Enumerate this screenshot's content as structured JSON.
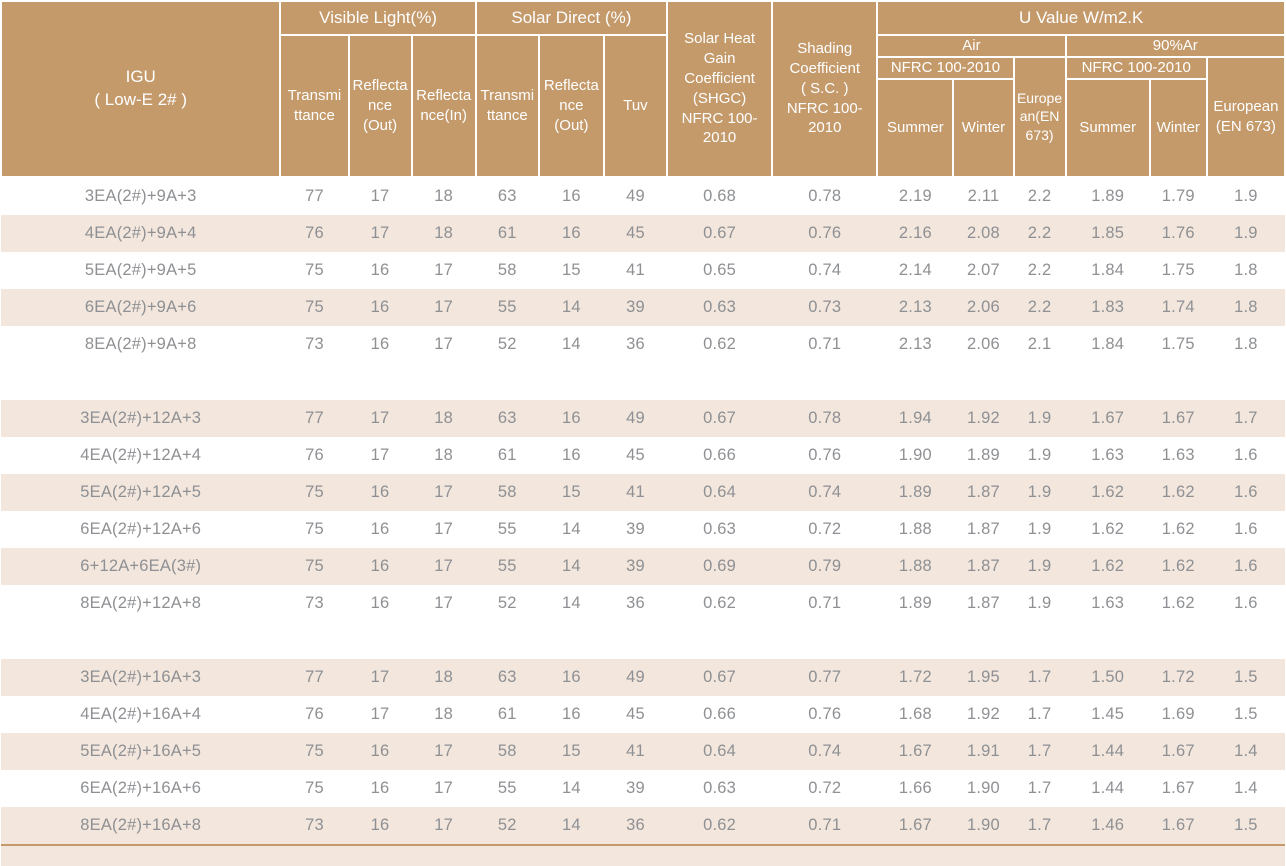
{
  "colors": {
    "header_bg": "#c49a6b",
    "row_shaded_bg": "#f2e6dd",
    "row_plain_bg": "#ffffff",
    "header_text": "#ffffff",
    "body_text": "#8e9093",
    "bottom_rule": "#c49a6b"
  },
  "table": {
    "corner_title": "IGU\n( Low-E 2# )",
    "group_headers": {
      "visible_light": "Visible Light(%)",
      "solar_direct": "Solar  Direct (%)",
      "shgc": "Solar Heat\nGain\nCoefficient\n(SHGC)\nNFRC 100-\n2010",
      "shading": "Shading\nCoefficient\n( S.C. )\nNFRC 100-\n2010",
      "u_value": "U Value W/m2.K"
    },
    "sub_headers": {
      "vl_transmittance": "Transmi\nttance",
      "vl_reflectance_out": "Reflecta\nnce\n(Out)",
      "vl_reflectance_in": "Reflecta\nnce(In)",
      "sd_transmittance": "Transmi\nttance",
      "sd_reflectance_out": "Reflecta\nnce\n(Out)",
      "sd_tuv": "Tuv",
      "air": "Air",
      "argon": "90%Ar",
      "air_nfrc": "NFRC 100-2010",
      "air_summer": "Summer",
      "air_winter": "Winter",
      "air_european": "Europe\nan(EN\n673)",
      "argon_nfrc": "NFRC 100-2010",
      "argon_summer": "Summer",
      "argon_winter": "Winter",
      "argon_european": "European\n(EN 673)"
    },
    "groups": [
      {
        "rows": [
          {
            "label": "3EA(2#)+9A+3",
            "values": [
              "77",
              "17",
              "18",
              "63",
              "16",
              "49",
              "0.68",
              "0.78",
              "2.19",
              "2.11",
              "2.2",
              "1.89",
              "1.79",
              "1.9"
            ]
          },
          {
            "label": "4EA(2#)+9A+4",
            "values": [
              "76",
              "17",
              "18",
              "61",
              "16",
              "45",
              "0.67",
              "0.76",
              "2.16",
              "2.08",
              "2.2",
              "1.85",
              "1.76",
              "1.9"
            ]
          },
          {
            "label": "5EA(2#)+9A+5",
            "values": [
              "75",
              "16",
              "17",
              "58",
              "15",
              "41",
              "0.65",
              "0.74",
              "2.14",
              "2.07",
              "2.2",
              "1.84",
              "1.75",
              "1.8"
            ]
          },
          {
            "label": "6EA(2#)+9A+6",
            "values": [
              "75",
              "16",
              "17",
              "55",
              "14",
              "39",
              "0.63",
              "0.73",
              "2.13",
              "2.06",
              "2.2",
              "1.83",
              "1.74",
              "1.8"
            ]
          },
          {
            "label": "8EA(2#)+9A+8",
            "values": [
              "73",
              "16",
              "17",
              "52",
              "14",
              "36",
              "0.62",
              "0.71",
              "2.13",
              "2.06",
              "2.1",
              "1.84",
              "1.75",
              "1.8"
            ]
          }
        ]
      },
      {
        "rows": [
          {
            "label": "3EA(2#)+12A+3",
            "values": [
              "77",
              "17",
              "18",
              "63",
              "16",
              "49",
              "0.67",
              "0.78",
              "1.94",
              "1.92",
              "1.9",
              "1.67",
              "1.67",
              "1.7"
            ]
          },
          {
            "label": "4EA(2#)+12A+4",
            "values": [
              "76",
              "17",
              "18",
              "61",
              "16",
              "45",
              "0.66",
              "0.76",
              "1.90",
              "1.89",
              "1.9",
              "1.63",
              "1.63",
              "1.6"
            ]
          },
          {
            "label": "5EA(2#)+12A+5",
            "values": [
              "75",
              "16",
              "17",
              "58",
              "15",
              "41",
              "0.64",
              "0.74",
              "1.89",
              "1.87",
              "1.9",
              "1.62",
              "1.62",
              "1.6"
            ]
          },
          {
            "label": "6EA(2#)+12A+6",
            "values": [
              "75",
              "16",
              "17",
              "55",
              "14",
              "39",
              "0.63",
              "0.72",
              "1.88",
              "1.87",
              "1.9",
              "1.62",
              "1.62",
              "1.6"
            ]
          },
          {
            "label": "6+12A+6EA(3#)",
            "values": [
              "75",
              "16",
              "17",
              "55",
              "14",
              "39",
              "0.69",
              "0.79",
              "1.88",
              "1.87",
              "1.9",
              "1.62",
              "1.62",
              "1.6"
            ]
          },
          {
            "label": "8EA(2#)+12A+8",
            "values": [
              "73",
              "16",
              "17",
              "52",
              "14",
              "36",
              "0.62",
              "0.71",
              "1.89",
              "1.87",
              "1.9",
              "1.63",
              "1.62",
              "1.6"
            ]
          }
        ]
      },
      {
        "rows": [
          {
            "label": "3EA(2#)+16A+3",
            "values": [
              "77",
              "17",
              "18",
              "63",
              "16",
              "49",
              "0.67",
              "0.77",
              "1.72",
              "1.95",
              "1.7",
              "1.50",
              "1.72",
              "1.5"
            ]
          },
          {
            "label": "4EA(2#)+16A+4",
            "values": [
              "76",
              "17",
              "18",
              "61",
              "16",
              "45",
              "0.66",
              "0.76",
              "1.68",
              "1.92",
              "1.7",
              "1.45",
              "1.69",
              "1.5"
            ]
          },
          {
            "label": "5EA(2#)+16A+5",
            "values": [
              "75",
              "16",
              "17",
              "58",
              "15",
              "41",
              "0.64",
              "0.74",
              "1.67",
              "1.91",
              "1.7",
              "1.44",
              "1.67",
              "1.4"
            ]
          },
          {
            "label": "6EA(2#)+16A+6",
            "values": [
              "75",
              "16",
              "17",
              "55",
              "14",
              "39",
              "0.63",
              "0.72",
              "1.66",
              "1.90",
              "1.7",
              "1.44",
              "1.67",
              "1.4"
            ]
          },
          {
            "label": "8EA(2#)+16A+8",
            "values": [
              "73",
              "16",
              "17",
              "52",
              "14",
              "36",
              "0.62",
              "0.71",
              "1.67",
              "1.90",
              "1.7",
              "1.46",
              "1.67",
              "1.5"
            ]
          }
        ]
      }
    ]
  }
}
